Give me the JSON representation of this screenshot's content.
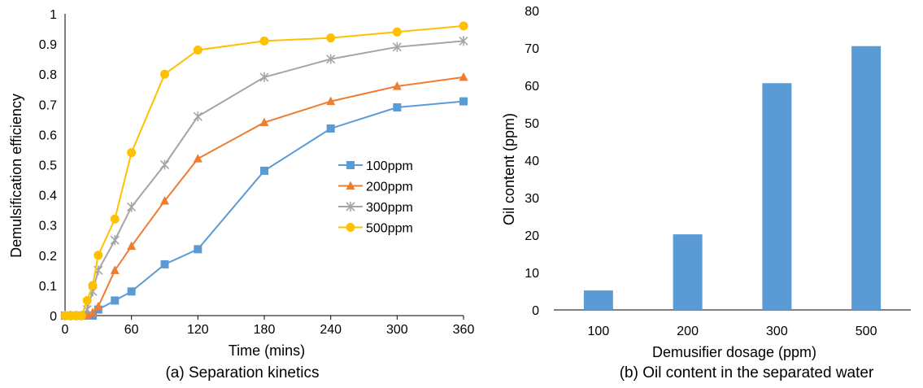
{
  "chart_data": [
    {
      "type": "line",
      "caption": "(a) Separation kinetics",
      "xlabel": "Time (mins)",
      "ylabel": "Demulsification efficiency",
      "xlim": [
        0,
        360
      ],
      "ylim": [
        0,
        1
      ],
      "x_ticks": [
        "0",
        "60",
        "120",
        "180",
        "240",
        "300",
        "360"
      ],
      "y_ticks": [
        "0",
        "0.1",
        "0.2",
        "0.3",
        "0.4",
        "0.5",
        "0.6",
        "0.7",
        "0.8",
        "0.9",
        "1"
      ],
      "grid": false,
      "legend_position": "center-right",
      "series": [
        {
          "name": "100ppm",
          "color": "#5B9BD5",
          "marker": "square",
          "x": [
            0,
            5,
            10,
            15,
            20,
            25,
            30,
            45,
            60,
            90,
            120,
            180,
            240,
            300,
            360
          ],
          "y": [
            0,
            0,
            0,
            0,
            0,
            0,
            0.02,
            0.05,
            0.08,
            0.17,
            0.22,
            0.48,
            0.62,
            0.69,
            0.71
          ]
        },
        {
          "name": "200ppm",
          "color": "#ED7D31",
          "marker": "triangle",
          "x": [
            0,
            5,
            10,
            15,
            20,
            25,
            30,
            45,
            60,
            90,
            120,
            180,
            240,
            300,
            360
          ],
          "y": [
            0,
            0,
            0,
            0,
            0,
            0.01,
            0.03,
            0.15,
            0.23,
            0.38,
            0.52,
            0.64,
            0.71,
            0.76,
            0.79
          ]
        },
        {
          "name": "300ppm",
          "color": "#A5A5A5",
          "marker": "star",
          "x": [
            0,
            5,
            10,
            15,
            20,
            25,
            30,
            45,
            60,
            90,
            120,
            180,
            240,
            300,
            360
          ],
          "y": [
            0,
            0,
            0,
            0,
            0.02,
            0.08,
            0.15,
            0.25,
            0.36,
            0.5,
            0.66,
            0.79,
            0.85,
            0.89,
            0.91
          ]
        },
        {
          "name": "500ppm",
          "color": "#FFC000",
          "marker": "circle",
          "x": [
            0,
            5,
            10,
            15,
            20,
            25,
            30,
            45,
            60,
            90,
            120,
            180,
            240,
            300,
            360
          ],
          "y": [
            0,
            0,
            0,
            0,
            0.05,
            0.1,
            0.2,
            0.32,
            0.54,
            0.8,
            0.88,
            0.91,
            0.92,
            0.94,
            0.96
          ]
        }
      ]
    },
    {
      "type": "bar",
      "caption": "(b) Oil content in the separated water",
      "xlabel": "Demusifier dosage (ppm)",
      "ylabel": "Oil content (ppm)",
      "ylim": [
        0,
        80
      ],
      "y_ticks": [
        "0",
        "10",
        "20",
        "30",
        "40",
        "50",
        "60",
        "70",
        "80"
      ],
      "categories": [
        "100",
        "200",
        "300",
        "500"
      ],
      "values": [
        5.2,
        20.2,
        60.6,
        70.5
      ],
      "color": "#5B9BD5",
      "grid": false
    }
  ]
}
